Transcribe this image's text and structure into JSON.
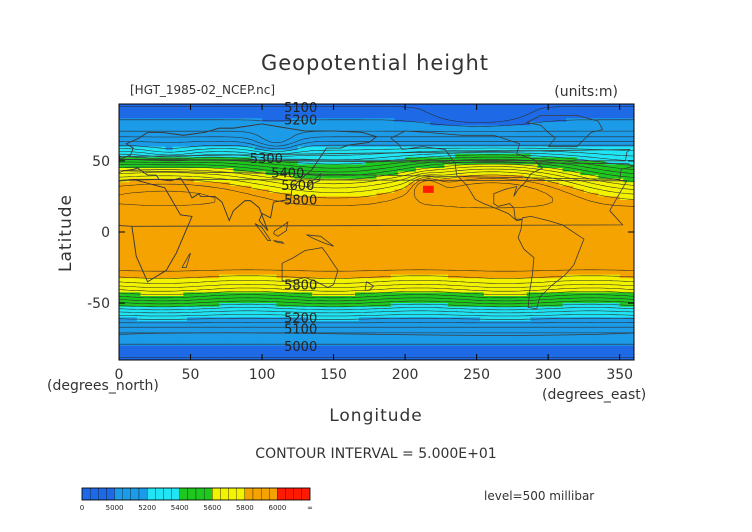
{
  "chart_data": {
    "type": "heatmap",
    "title": "Geopotential height",
    "subtitle_left": "[HGT_1985-02_NCEP.nc]",
    "subtitle_right": "(units:m)",
    "xlabel": "Longitude",
    "ylabel": "Latitude",
    "x_unit_label": "(degrees_east)",
    "y_unit_label": "(degrees_north)",
    "xlim": [
      0,
      360
    ],
    "ylim": [
      -90,
      90
    ],
    "x_ticks": [
      0,
      50,
      100,
      150,
      200,
      250,
      300,
      350
    ],
    "y_ticks": [
      50,
      0,
      -50
    ],
    "contour_interval_text": "CONTOUR INTERVAL = 5.000E+01",
    "level_text": "level=500 millibar",
    "levels": [
      {
        "min": 0,
        "max": 5000,
        "color": "#1e6ae6"
      },
      {
        "min": 5000,
        "max": 5200,
        "color": "#1c9be8"
      },
      {
        "min": 5200,
        "max": 5400,
        "color": "#21e4f4"
      },
      {
        "min": 5400,
        "max": 5600,
        "color": "#1ec81e"
      },
      {
        "min": 5600,
        "max": 5800,
        "color": "#f3f300"
      },
      {
        "min": 5800,
        "max": 6000,
        "color": "#f5a300"
      },
      {
        "min": 6000,
        "max": null,
        "color": "#ff1a00"
      }
    ],
    "colorbar_ticks": [
      "0",
      "5000",
      "5200",
      "5400",
      "5600",
      "5800",
      "6000",
      "∞"
    ],
    "contour_labels": [
      {
        "text": "5100",
        "lon": 127,
        "lat": 88
      },
      {
        "text": "5200",
        "lon": 127,
        "lat": 79
      },
      {
        "text": "5300",
        "lon": 103,
        "lat": 52
      },
      {
        "text": "5400",
        "lon": 118,
        "lat": 42
      },
      {
        "text": "5600",
        "lon": 125,
        "lat": 33
      },
      {
        "text": "5800",
        "lon": 127,
        "lat": 23
      },
      {
        "text": "5800",
        "lon": 127,
        "lat": -37
      },
      {
        "text": "5200",
        "lon": 127,
        "lat": -60
      },
      {
        "text": "5100",
        "lon": 127,
        "lat": -68
      },
      {
        "text": "5000",
        "lon": 127,
        "lat": -80
      }
    ]
  }
}
